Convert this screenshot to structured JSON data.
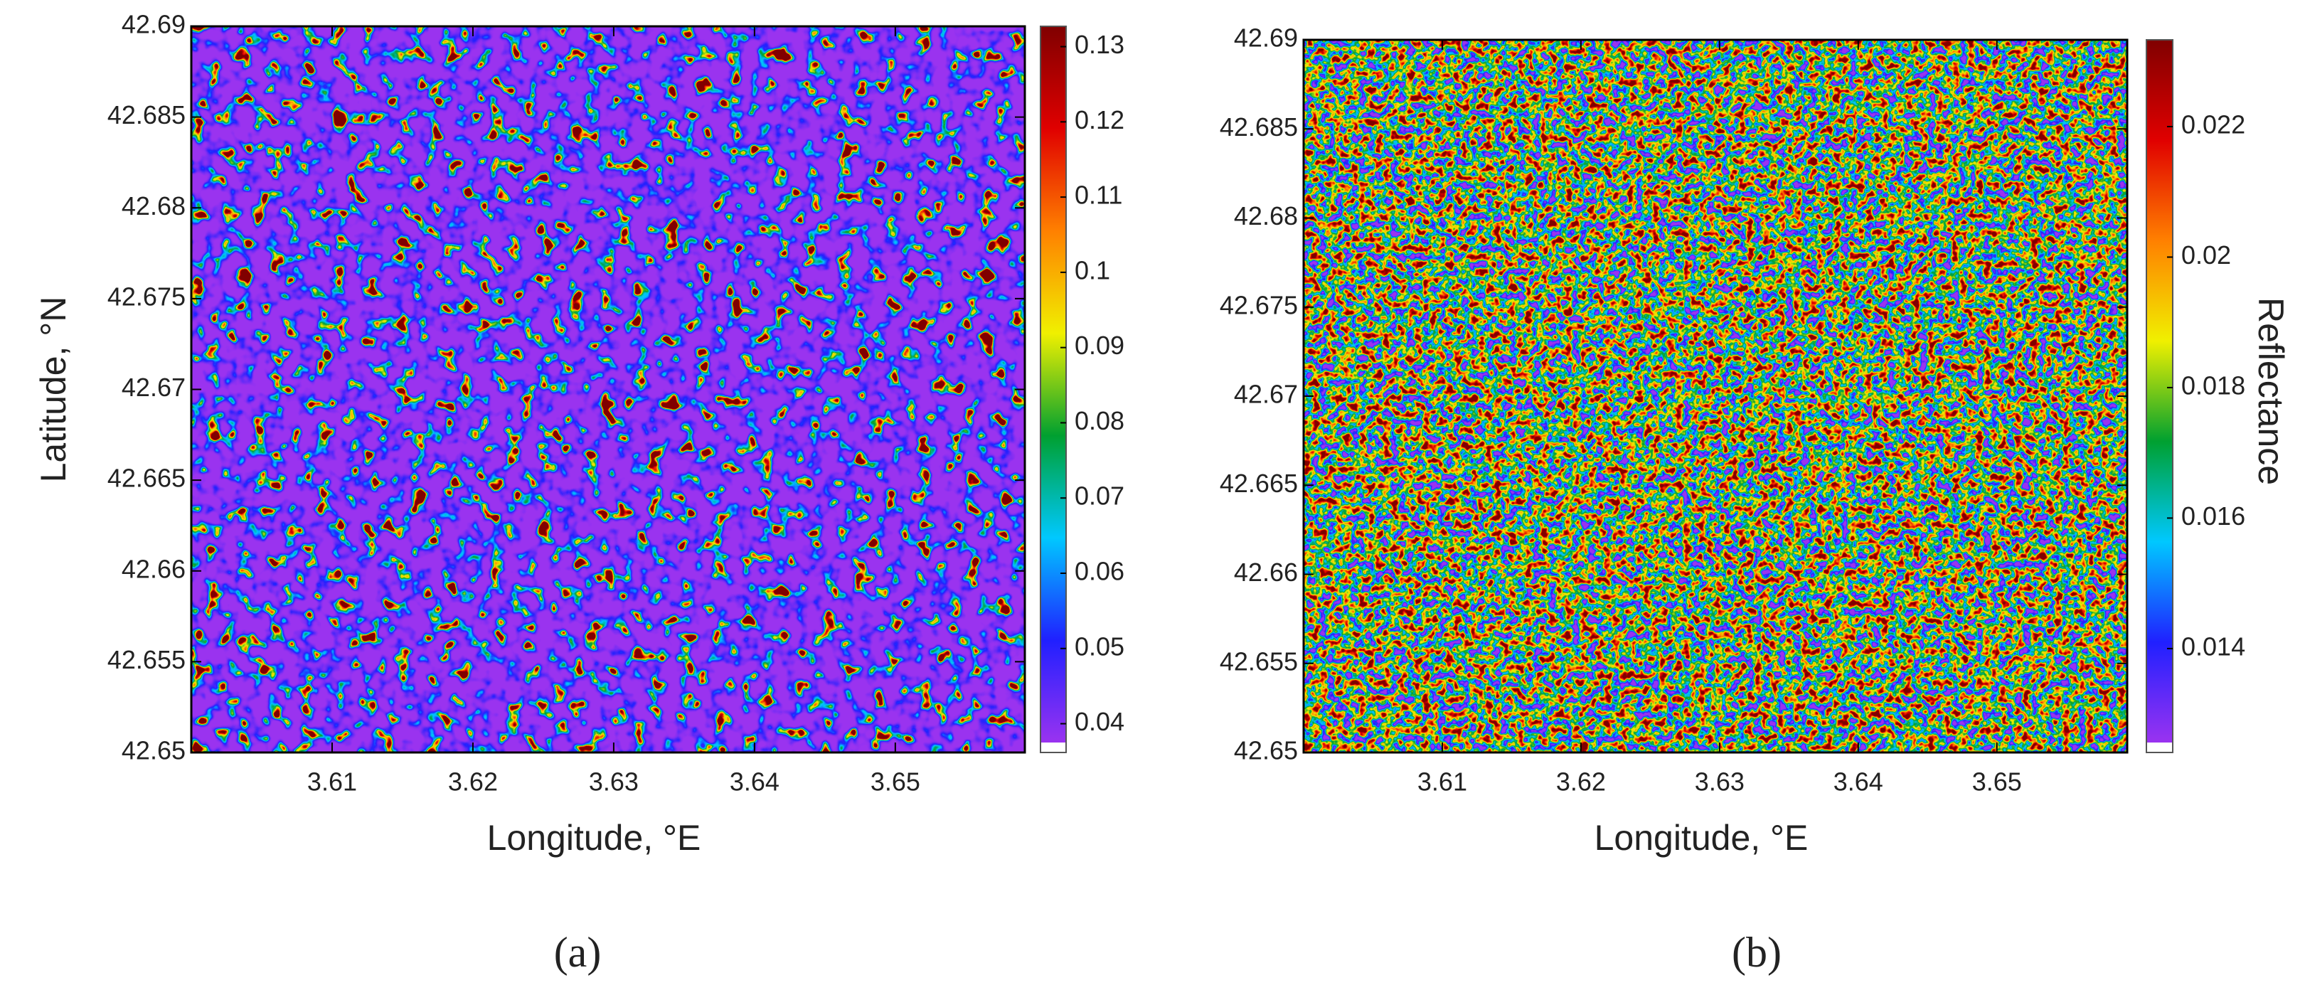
{
  "chart_data": [
    {
      "type": "heatmap",
      "xlabel": "Longitude, °E",
      "ylabel": "Latitude, °N",
      "caption": "(a)",
      "xlim": [
        3.6,
        3.6592
      ],
      "ylim": [
        42.65,
        42.69
      ],
      "xticks": [
        3.61,
        3.62,
        3.63,
        3.64,
        3.65
      ],
      "yticks": [
        42.65,
        42.655,
        42.66,
        42.665,
        42.67,
        42.675,
        42.68,
        42.685,
        42.69
      ],
      "clim": [
        0.0375,
        0.1327
      ],
      "cticks": [
        0.04,
        0.05,
        0.06,
        0.07,
        0.08,
        0.09,
        0.1,
        0.11,
        0.12,
        0.13
      ],
      "colormap": [
        "#9a33f0",
        "#2020ff",
        "#00c8ff",
        "#00a030",
        "#f0f000",
        "#ff8000",
        "#e00000",
        "#800000"
      ]
    },
    {
      "type": "heatmap",
      "xlabel": "Longitude, °E",
      "colorbar_label": "Reflectance",
      "caption": "(b)",
      "xlim": [
        3.6,
        3.6594
      ],
      "ylim": [
        42.65,
        42.69
      ],
      "xticks": [
        3.61,
        3.62,
        3.63,
        3.64,
        3.65
      ],
      "yticks": [
        42.65,
        42.655,
        42.66,
        42.665,
        42.67,
        42.675,
        42.68,
        42.685,
        42.69
      ],
      "clim": [
        0.01256,
        0.02333
      ],
      "cticks": [
        0.014,
        0.016,
        0.018,
        0.02,
        0.022
      ],
      "colormap": [
        "#9a33f0",
        "#2020ff",
        "#00c8ff",
        "#00a030",
        "#f0f000",
        "#ff8000",
        "#e00000",
        "#800000"
      ]
    }
  ]
}
